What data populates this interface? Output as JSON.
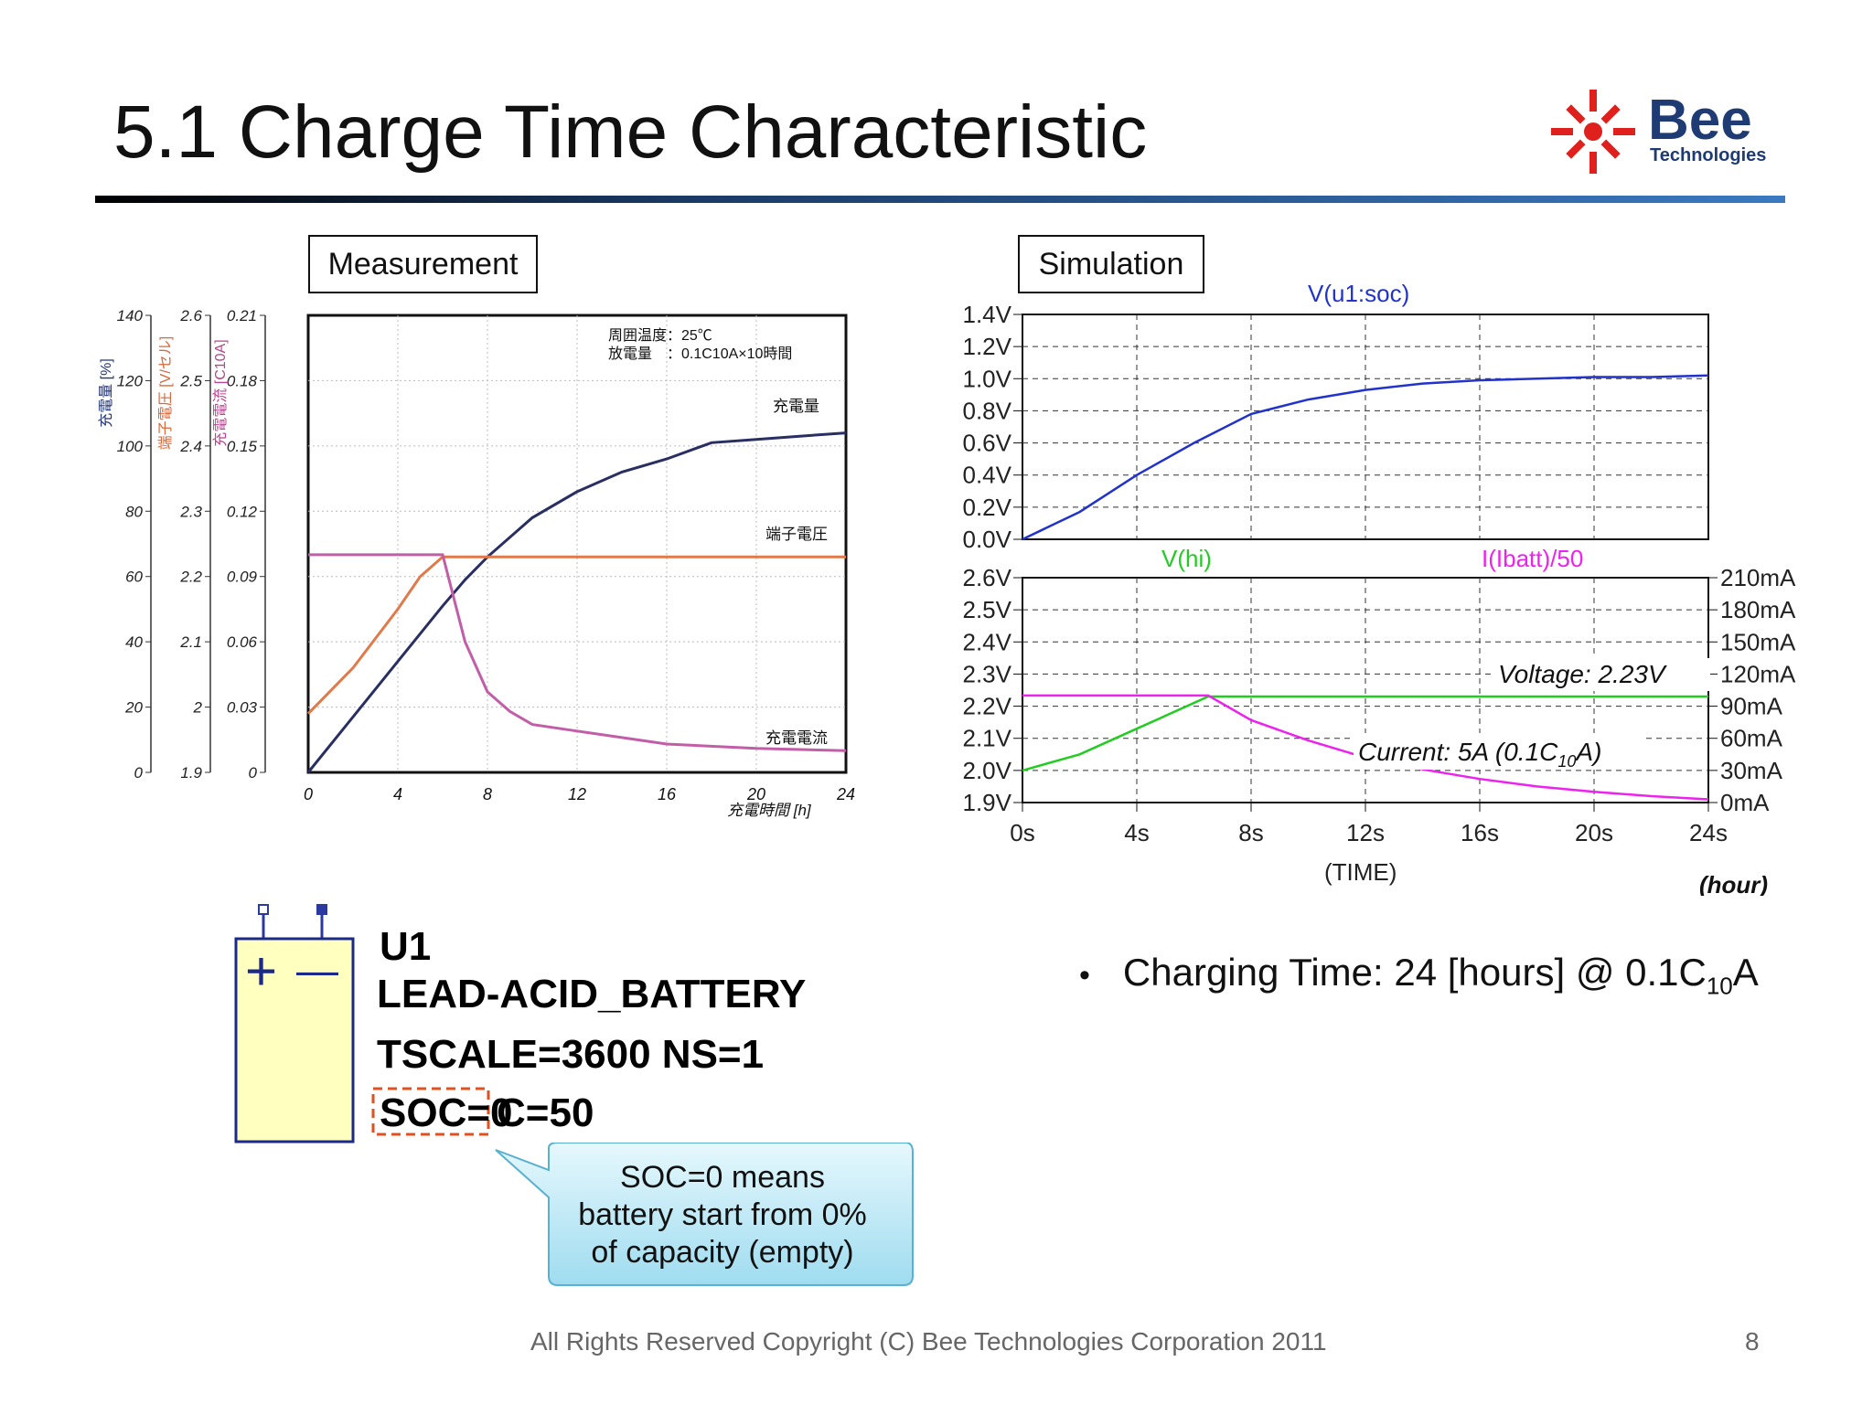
{
  "slide": {
    "title": "5.1 Charge Time Characteristic",
    "logo_text": "Bee",
    "logo_subtext": "Technologies",
    "measurement_label": "Measurement",
    "simulation_label": "Simulation",
    "bullet": {
      "prefix": "Charging Time: 24 [hours] @ 0.1C",
      "sub": "10",
      "suffix": "A"
    },
    "copyright": "All Rights Reserved Copyright (C) Bee Technologies Corporation 2011",
    "page_number": "8"
  },
  "component": {
    "plus": "+",
    "minus": "—",
    "name": "U1",
    "type": "LEAD-ACID_BATTERY",
    "params1": "TSCALE=3600 NS=1",
    "soc": "SOC=0",
    "cap": "C=50",
    "callout": [
      "SOC=0 means",
      "battery start from 0%",
      "of capacity (empty)"
    ]
  },
  "chart_data": [
    {
      "type": "line",
      "title": "Measurement",
      "x": [
        0,
        2,
        4,
        6,
        7,
        8,
        10,
        12,
        14,
        16,
        18,
        20,
        22,
        24
      ],
      "xticks": [
        "0",
        "4",
        "8",
        "12",
        "16",
        "20",
        "24"
      ],
      "xlim": [
        0,
        24
      ],
      "xlabel": "充電時間 [h]",
      "axes": [
        {
          "label": "充電量 [%]",
          "ticks": [
            "140",
            "120",
            "100",
            "80",
            "60",
            "40",
            "20",
            "0"
          ],
          "color": "#22357a"
        },
        {
          "label": "端子電圧 [V/セル]",
          "ticks": [
            "2.6",
            "2.5",
            "2.4",
            "2.3",
            "2.2",
            "2.1",
            "2",
            "1.9"
          ],
          "color": "#d9683a"
        },
        {
          "label": "充電電流 [C10A]",
          "ticks": [
            "0.21",
            "0.18",
            "0.15",
            "0.12",
            "0.09",
            "0.06",
            "0.03",
            "0"
          ],
          "color": "#b4478f"
        }
      ],
      "legend_text": [
        "周囲温度：25℃",
        "放電量　：0.1C10A×10時間"
      ],
      "series": [
        {
          "name": "充電量",
          "color": "#2a2f63",
          "axis": 0,
          "points": [
            [
              0,
              0
            ],
            [
              2,
              17
            ],
            [
              4,
              34
            ],
            [
              6,
              51
            ],
            [
              7,
              59
            ],
            [
              8,
              66
            ],
            [
              10,
              78
            ],
            [
              12,
              86
            ],
            [
              14,
              92
            ],
            [
              16,
              96
            ],
            [
              18,
              101
            ],
            [
              20,
              102
            ],
            [
              22,
              103
            ],
            [
              24,
              104
            ]
          ]
        },
        {
          "name": "端子電圧",
          "color": "#e07a4a",
          "axis": 1,
          "points": [
            [
              0,
              1.99
            ],
            [
              2,
              2.06
            ],
            [
              4,
              2.15
            ],
            [
              5,
              2.2
            ],
            [
              6,
              2.23
            ],
            [
              24,
              2.23
            ]
          ]
        },
        {
          "name": "充電電流",
          "color": "#c25ea8",
          "axis": 2,
          "points": [
            [
              0,
              0.1
            ],
            [
              6,
              0.1
            ],
            [
              7,
              0.06
            ],
            [
              8,
              0.037
            ],
            [
              9,
              0.028
            ],
            [
              10,
              0.022
            ],
            [
              12,
              0.019
            ],
            [
              14,
              0.016
            ],
            [
              16,
              0.013
            ],
            [
              20,
              0.011
            ],
            [
              24,
              0.01
            ]
          ]
        }
      ]
    },
    {
      "type": "line",
      "title": "V(u1:soc)",
      "x": [
        0,
        4,
        8,
        12,
        16,
        20,
        24
      ],
      "xlim": [
        0,
        24
      ],
      "ylim": [
        0,
        1.4
      ],
      "yticks": [
        "1.4V",
        "1.2V",
        "1.0V",
        "0.8V",
        "0.6V",
        "0.4V",
        "0.2V",
        "0.0V"
      ],
      "series": [
        {
          "name": "V(u1:soc)",
          "color": "#2233cc",
          "points": [
            [
              0,
              0
            ],
            [
              2,
              0.17
            ],
            [
              4,
              0.4
            ],
            [
              6,
              0.6
            ],
            [
              8,
              0.78
            ],
            [
              10,
              0.87
            ],
            [
              12,
              0.93
            ],
            [
              14,
              0.97
            ],
            [
              16,
              0.99
            ],
            [
              18,
              1.0
            ],
            [
              20,
              1.01
            ],
            [
              22,
              1.01
            ],
            [
              24,
              1.02
            ]
          ]
        }
      ]
    },
    {
      "type": "line",
      "xticks": [
        "0s",
        "4s",
        "8s",
        "12s",
        "16s",
        "20s",
        "24s"
      ],
      "xlabel": "(TIME)",
      "xunit": "(hour)",
      "xlim": [
        0,
        24
      ],
      "ylim": [
        1.9,
        2.6
      ],
      "yticks": [
        "2.6V",
        "2.5V",
        "2.4V",
        "2.3V",
        "2.2V",
        "2.1V",
        "2.0V",
        "1.9V"
      ],
      "y2lim": [
        0,
        210
      ],
      "y2ticks": [
        "210mA",
        "180mA",
        "150mA",
        "120mA",
        "90mA",
        "60mA",
        "30mA",
        "0mA"
      ],
      "annotations": {
        "voltage": "Voltage: 2.23V",
        "current_prefix": "Current: 5A (0.1C",
        "current_sub": "10",
        "current_suffix": "A)"
      },
      "series": [
        {
          "name": "V(hi)",
          "color": "#22cc22",
          "axis": "left",
          "points": [
            [
              0,
              2.0
            ],
            [
              2,
              2.05
            ],
            [
              4,
              2.13
            ],
            [
              6.5,
              2.23
            ],
            [
              24,
              2.23
            ]
          ]
        },
        {
          "name": "I(Ibatt)/50",
          "color": "#ee22ee",
          "axis": "right",
          "points": [
            [
              0,
              100
            ],
            [
              6.5,
              100
            ],
            [
              8,
              77
            ],
            [
              10,
              58
            ],
            [
              12,
              42
            ],
            [
              14,
              31
            ],
            [
              16,
              22
            ],
            [
              18,
              15
            ],
            [
              20,
              10
            ],
            [
              22,
              6
            ],
            [
              24,
              3
            ]
          ]
        }
      ]
    }
  ]
}
